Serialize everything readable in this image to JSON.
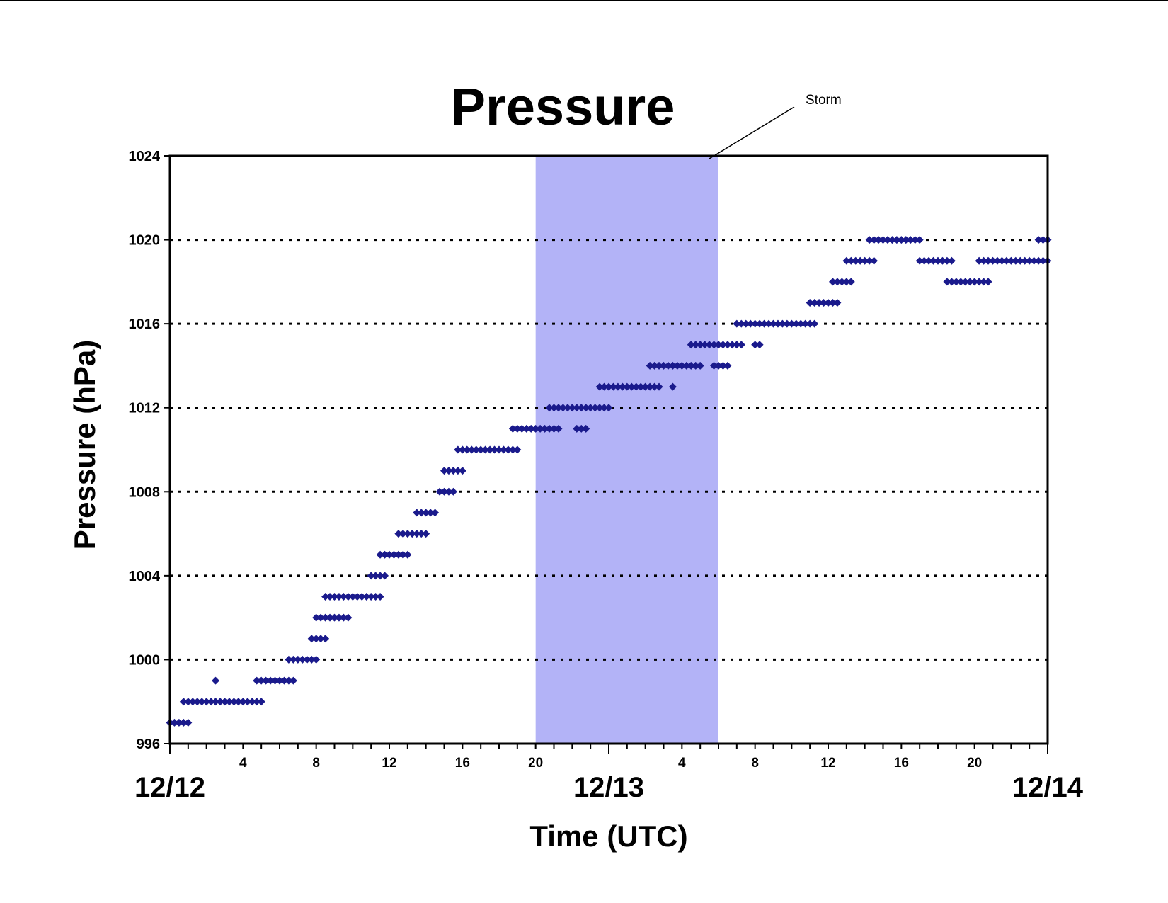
{
  "chart_data": {
    "type": "scatter",
    "title": "Pressure",
    "xlabel": "Time (UTC)",
    "ylabel": "Pressure (hPa)",
    "ylim": [
      996,
      1024
    ],
    "y_ticks": [
      "996",
      "1000",
      "1004",
      "1008",
      "1012",
      "1016",
      "1020",
      "1024"
    ],
    "xlim": [
      "12/12 00:00",
      "12/14 00:00"
    ],
    "x_hour_labels": [
      "4",
      "8",
      "12",
      "16",
      "20",
      "4",
      "8",
      "12",
      "16",
      "20"
    ],
    "x_date_labels": [
      "12/12",
      "12/13",
      "12/14"
    ],
    "grid": "horizontal dotted",
    "colors": {
      "marker": "#1a1a8c",
      "shade": "#b3b3f7"
    },
    "annotation": {
      "text": "Storm",
      "start": "12/12 20:00",
      "end": "12/13 06:00"
    },
    "series": [
      {
        "points": [
          [
            "12/12 00:00",
            "12/12 01:00",
            997
          ],
          [
            "12/12 00:45",
            "12/12 05:00",
            998
          ],
          [
            "12/12 02:30",
            "12/12 02:30",
            999
          ],
          [
            "12/12 04:45",
            "12/12 06:45",
            999
          ],
          [
            "12/12 06:30",
            "12/12 08:00",
            1000
          ],
          [
            "12/12 07:45",
            "12/12 08:30",
            1001
          ],
          [
            "12/12 08:00",
            "12/12 09:00",
            1002
          ],
          [
            "12/12 09:15",
            "12/12 09:30",
            1002
          ],
          [
            "12/12 09:45",
            "12/12 09:45",
            1002
          ],
          [
            "12/12 08:30",
            "12/12 11:30",
            1003
          ],
          [
            "12/12 11:00",
            "12/12 11:45",
            1004
          ],
          [
            "12/12 11:30",
            "12/12 13:00",
            1005
          ],
          [
            "12/12 12:30",
            "12/12 14:00",
            1006
          ],
          [
            "12/12 13:30",
            "12/12 14:30",
            1007
          ],
          [
            "12/12 14:45",
            "12/12 15:30",
            1008
          ],
          [
            "12/12 15:00",
            "12/12 16:00",
            1009
          ],
          [
            "12/12 15:45",
            "12/12 19:00",
            1010
          ],
          [
            "12/12 18:45",
            "12/12 21:15",
            1011
          ],
          [
            "12/12 22:15",
            "12/12 22:30",
            1011
          ],
          [
            "12/12 22:45",
            "12/12 22:45",
            1011
          ],
          [
            "12/12 20:45",
            "12/13 00:00",
            1012
          ],
          [
            "12/12 23:30",
            "12/13 02:45",
            1013
          ],
          [
            "12/13 03:30",
            "12/13 03:30",
            1013
          ],
          [
            "12/13 02:15",
            "12/13 05:00",
            1014
          ],
          [
            "12/13 05:45",
            "12/13 06:30",
            1014
          ],
          [
            "12/13 04:30",
            "12/13 06:00",
            1015
          ],
          [
            "12/13 06:00",
            "12/13 07:15",
            1015
          ],
          [
            "12/13 08:00",
            "12/13 08:15",
            1015
          ],
          [
            "12/13 07:00",
            "12/13 11:15",
            1016
          ],
          [
            "12/13 11:00",
            "12/13 12:30",
            1017
          ],
          [
            "12/13 12:15",
            "12/13 13:15",
            1018
          ],
          [
            "12/13 13:00",
            "12/13 14:30",
            1019
          ],
          [
            "12/13 14:15",
            "12/13 17:00",
            1020
          ],
          [
            "12/13 17:00",
            "12/13 18:45",
            1019
          ],
          [
            "12/13 18:30",
            "12/13 20:30",
            1018
          ],
          [
            "12/13 20:45",
            "12/13 20:45",
            1018
          ],
          [
            "12/13 20:15",
            "12/14 00:00",
            1019
          ],
          [
            "12/13 23:30",
            "12/14 00:00",
            1020
          ]
        ]
      }
    ]
  }
}
